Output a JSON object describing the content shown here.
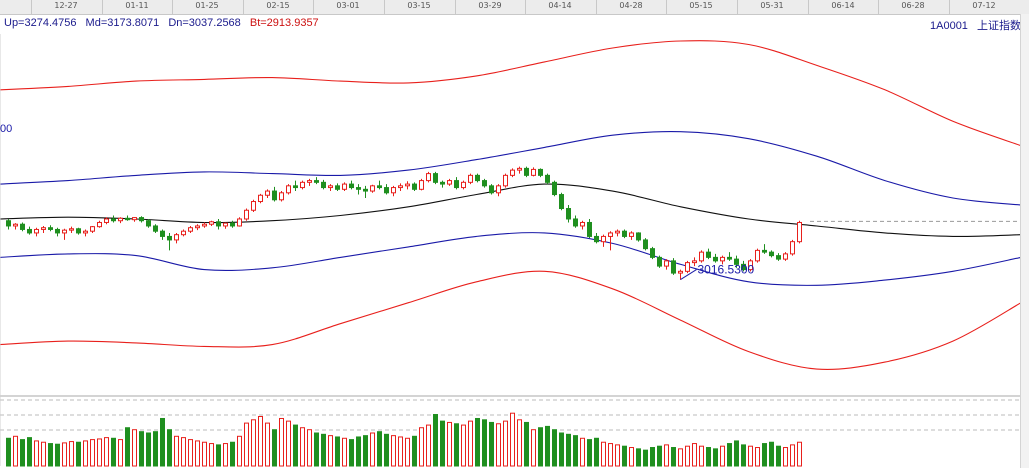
{
  "window": {
    "symbol_code": "1A0001",
    "symbol_name": "上证指数"
  },
  "readout": {
    "up": "Up=3274.4756",
    "md": "Md=3173.8071",
    "dn": "Dn=3037.2568",
    "bt": "Bt=2913.9357"
  },
  "colors": {
    "up_candle": "#e8201c",
    "down_candle": "#1f8f1f",
    "mid_band": "#111111",
    "inner_band": "#1a1aa8",
    "outer_band": "#e8201c",
    "readout_blue": "#1a1a8c",
    "readout_red": "#cc1010",
    "grid": "#bbbbbb"
  },
  "chart_data": {
    "type": "candlestick",
    "x_axis_dates": [
      "12-27",
      "01-11",
      "01-25",
      "02-15",
      "03-01",
      "03-15",
      "03-29",
      "04-14",
      "04-28",
      "05-15",
      "05-31",
      "06-14",
      "06-28",
      "07-12"
    ],
    "left_edge_tick_fragment": "00",
    "last_close_level": 3183,
    "low_annotation": "3016.5300",
    "low_value": 3016.53,
    "y_range": [
      2700,
      3720
    ],
    "candles": [
      [
        3185,
        3190,
        3160,
        3170
      ],
      [
        3170,
        3178,
        3160,
        3175
      ],
      [
        3175,
        3180,
        3155,
        3160
      ],
      [
        3160,
        3168,
        3145,
        3150
      ],
      [
        3150,
        3165,
        3140,
        3160
      ],
      [
        3160,
        3170,
        3150,
        3165
      ],
      [
        3165,
        3172,
        3155,
        3160
      ],
      [
        3160,
        3165,
        3140,
        3150
      ],
      [
        3150,
        3162,
        3130,
        3158
      ],
      [
        3158,
        3168,
        3150,
        3162
      ],
      [
        3162,
        3165,
        3145,
        3150
      ],
      [
        3150,
        3160,
        3140,
        3155
      ],
      [
        3155,
        3170,
        3150,
        3168
      ],
      [
        3168,
        3185,
        3165,
        3180
      ],
      [
        3180,
        3195,
        3175,
        3190
      ],
      [
        3190,
        3200,
        3180,
        3185
      ],
      [
        3185,
        3195,
        3178,
        3192
      ],
      [
        3192,
        3200,
        3185,
        3188
      ],
      [
        3188,
        3195,
        3182,
        3194
      ],
      [
        3194,
        3198,
        3180,
        3185
      ],
      [
        3185,
        3190,
        3165,
        3170
      ],
      [
        3170,
        3175,
        3150,
        3155
      ],
      [
        3155,
        3160,
        3130,
        3140
      ],
      [
        3140,
        3150,
        3100,
        3130
      ],
      [
        3130,
        3150,
        3120,
        3145
      ],
      [
        3145,
        3160,
        3140,
        3155
      ],
      [
        3155,
        3170,
        3150,
        3165
      ],
      [
        3165,
        3175,
        3158,
        3170
      ],
      [
        3170,
        3180,
        3165,
        3175
      ],
      [
        3175,
        3185,
        3170,
        3182
      ],
      [
        3182,
        3190,
        3160,
        3170
      ],
      [
        3170,
        3180,
        3162,
        3178
      ],
      [
        3178,
        3185,
        3165,
        3170
      ],
      [
        3170,
        3195,
        3168,
        3190
      ],
      [
        3190,
        3220,
        3185,
        3215
      ],
      [
        3215,
        3245,
        3210,
        3240
      ],
      [
        3240,
        3262,
        3235,
        3258
      ],
      [
        3258,
        3275,
        3250,
        3270
      ],
      [
        3270,
        3282,
        3240,
        3245
      ],
      [
        3245,
        3270,
        3240,
        3265
      ],
      [
        3265,
        3290,
        3260,
        3285
      ],
      [
        3285,
        3300,
        3270,
        3280
      ],
      [
        3280,
        3300,
        3275,
        3295
      ],
      [
        3295,
        3305,
        3285,
        3300
      ],
      [
        3300,
        3310,
        3290,
        3295
      ],
      [
        3295,
        3302,
        3275,
        3280
      ],
      [
        3280,
        3290,
        3270,
        3285
      ],
      [
        3285,
        3292,
        3270,
        3275
      ],
      [
        3275,
        3295,
        3270,
        3290
      ],
      [
        3290,
        3300,
        3275,
        3280
      ],
      [
        3280,
        3290,
        3260,
        3275
      ],
      [
        3275,
        3285,
        3250,
        3270
      ],
      [
        3270,
        3288,
        3265,
        3285
      ],
      [
        3285,
        3300,
        3275,
        3280
      ],
      [
        3280,
        3290,
        3260,
        3265
      ],
      [
        3265,
        3285,
        3255,
        3280
      ],
      [
        3280,
        3292,
        3270,
        3285
      ],
      [
        3285,
        3298,
        3275,
        3290
      ],
      [
        3290,
        3295,
        3270,
        3275
      ],
      [
        3275,
        3305,
        3272,
        3300
      ],
      [
        3300,
        3325,
        3295,
        3320
      ],
      [
        3320,
        3325,
        3290,
        3295
      ],
      [
        3295,
        3300,
        3280,
        3290
      ],
      [
        3290,
        3305,
        3285,
        3300
      ],
      [
        3300,
        3310,
        3275,
        3280
      ],
      [
        3280,
        3300,
        3275,
        3295
      ],
      [
        3295,
        3320,
        3290,
        3315
      ],
      [
        3315,
        3320,
        3295,
        3300
      ],
      [
        3300,
        3305,
        3280,
        3285
      ],
      [
        3285,
        3290,
        3260,
        3265
      ],
      [
        3265,
        3290,
        3255,
        3285
      ],
      [
        3285,
        3320,
        3280,
        3315
      ],
      [
        3315,
        3335,
        3310,
        3330
      ],
      [
        3330,
        3340,
        3320,
        3335
      ],
      [
        3335,
        3340,
        3310,
        3315
      ],
      [
        3315,
        3338,
        3312,
        3332
      ],
      [
        3332,
        3335,
        3310,
        3315
      ],
      [
        3315,
        3320,
        3290,
        3295
      ],
      [
        3295,
        3300,
        3255,
        3260
      ],
      [
        3260,
        3265,
        3215,
        3220
      ],
      [
        3220,
        3230,
        3180,
        3190
      ],
      [
        3190,
        3200,
        3165,
        3170
      ],
      [
        3170,
        3185,
        3160,
        3180
      ],
      [
        3180,
        3190,
        3135,
        3140
      ],
      [
        3140,
        3150,
        3120,
        3125
      ],
      [
        3125,
        3145,
        3110,
        3140
      ],
      [
        3140,
        3155,
        3100,
        3150
      ],
      [
        3150,
        3160,
        3140,
        3155
      ],
      [
        3155,
        3160,
        3135,
        3140
      ],
      [
        3140,
        3155,
        3130,
        3150
      ],
      [
        3150,
        3152,
        3125,
        3130
      ],
      [
        3130,
        3135,
        3100,
        3105
      ],
      [
        3105,
        3110,
        3075,
        3080
      ],
      [
        3080,
        3085,
        3050,
        3055
      ],
      [
        3055,
        3075,
        3045,
        3070
      ],
      [
        3070,
        3078,
        3030,
        3035
      ],
      [
        3035,
        3045,
        3016,
        3040
      ],
      [
        3040,
        3070,
        3035,
        3065
      ],
      [
        3065,
        3080,
        3055,
        3070
      ],
      [
        3070,
        3100,
        3065,
        3095
      ],
      [
        3095,
        3105,
        3075,
        3080
      ],
      [
        3080,
        3090,
        3065,
        3070
      ],
      [
        3070,
        3085,
        3060,
        3080
      ],
      [
        3080,
        3095,
        3070,
        3075
      ],
      [
        3075,
        3085,
        3050,
        3060
      ],
      [
        3060,
        3070,
        3040,
        3045
      ],
      [
        3045,
        3075,
        3040,
        3070
      ],
      [
        3070,
        3105,
        3065,
        3100
      ],
      [
        3100,
        3118,
        3090,
        3095
      ],
      [
        3095,
        3100,
        3080,
        3085
      ],
      [
        3085,
        3092,
        3070,
        3075
      ],
      [
        3075,
        3095,
        3070,
        3090
      ],
      [
        3090,
        3130,
        3085,
        3125
      ],
      [
        3125,
        3185,
        3120,
        3180
      ]
    ],
    "bands": {
      "outer_upper": [
        3560,
        3570,
        3585,
        3590,
        3595,
        3585,
        3580,
        3600,
        3640,
        3680,
        3700,
        3690,
        3630,
        3560,
        3470,
        3400
      ],
      "inner_upper": [
        3290,
        3300,
        3315,
        3325,
        3320,
        3315,
        3330,
        3360,
        3395,
        3430,
        3440,
        3420,
        3370,
        3300,
        3250,
        3230
      ],
      "mid": [
        3190,
        3195,
        3190,
        3180,
        3185,
        3200,
        3225,
        3260,
        3290,
        3270,
        3225,
        3190,
        3170,
        3150,
        3140,
        3145
      ],
      "inner_lower": [
        3080,
        3090,
        3085,
        3045,
        3050,
        3080,
        3110,
        3140,
        3150,
        3120,
        3060,
        3010,
        3000,
        3015,
        3040,
        3080
      ],
      "outer_lower": [
        2830,
        2840,
        2835,
        2825,
        2830,
        2890,
        2950,
        3010,
        3040,
        2990,
        2900,
        2810,
        2760,
        2780,
        2840,
        2950
      ]
    },
    "volume": [
      0.42,
      0.45,
      0.4,
      0.43,
      0.38,
      0.36,
      0.34,
      0.33,
      0.35,
      0.37,
      0.36,
      0.38,
      0.4,
      0.41,
      0.43,
      0.42,
      0.4,
      0.58,
      0.55,
      0.52,
      0.5,
      0.52,
      0.72,
      0.55,
      0.45,
      0.43,
      0.4,
      0.38,
      0.36,
      0.34,
      0.32,
      0.34,
      0.36,
      0.45,
      0.65,
      0.7,
      0.75,
      0.65,
      0.55,
      0.72,
      0.68,
      0.62,
      0.58,
      0.55,
      0.5,
      0.48,
      0.46,
      0.44,
      0.42,
      0.4,
      0.44,
      0.46,
      0.5,
      0.52,
      0.48,
      0.46,
      0.44,
      0.42,
      0.45,
      0.58,
      0.62,
      0.78,
      0.68,
      0.66,
      0.64,
      0.62,
      0.68,
      0.72,
      0.7,
      0.66,
      0.64,
      0.68,
      0.8,
      0.7,
      0.66,
      0.55,
      0.58,
      0.6,
      0.55,
      0.5,
      0.48,
      0.46,
      0.42,
      0.4,
      0.42,
      0.36,
      0.34,
      0.32,
      0.3,
      0.28,
      0.26,
      0.24,
      0.28,
      0.3,
      0.32,
      0.28,
      0.26,
      0.3,
      0.34,
      0.3,
      0.28,
      0.26,
      0.3,
      0.34,
      0.38,
      0.32,
      0.3,
      0.28,
      0.34,
      0.36,
      0.3,
      0.28,
      0.32,
      0.36
    ]
  }
}
